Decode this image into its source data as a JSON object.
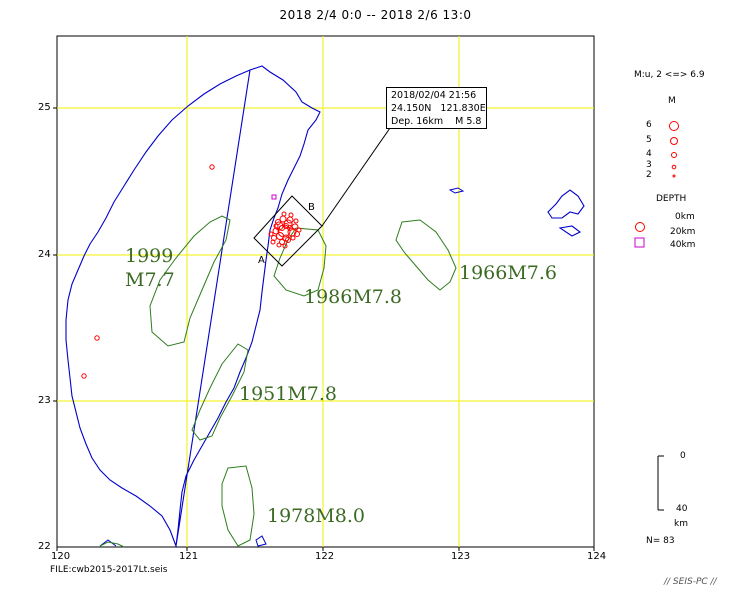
{
  "title": "2018 2/4 0:0 -- 2018 2/6 13:0",
  "map": {
    "lon_ticks": [
      "120",
      "121",
      "122",
      "123",
      "124"
    ],
    "lat_ticks": [
      "25",
      "24",
      "23",
      "22"
    ],
    "grid": true
  },
  "event_info": {
    "line1": "2018/02/04 21:56",
    "line2": "24.150N   121.830E",
    "line3": "Dep. 16km    M 5.8"
  },
  "section_labels": {
    "a": "A",
    "b": "B"
  },
  "historic_quakes": [
    {
      "label_line1": "1999",
      "label_line2": "M7.7"
    },
    {
      "label": "1986M7.8"
    },
    {
      "label": "1966M7.6"
    },
    {
      "label": "1951M7.8"
    },
    {
      "label": "1978M8.0"
    }
  ],
  "legend": {
    "magnitude_range": "M:u, 2 <=> 6.9",
    "magnitude_title": "M",
    "magnitudes": [
      "6",
      "5",
      "4",
      "3",
      "2"
    ],
    "depth_title": "DEPTH",
    "depths": [
      "0km",
      "20km",
      "40km"
    ],
    "depth_colors": [
      "#ff0000",
      "#ff0000",
      "#cc00cc"
    ],
    "scale_top": "0",
    "scale_bottom": "40",
    "scale_unit": "km",
    "count": "N= 83"
  },
  "footer": {
    "file": "FILE:cwb2015-2017Lt.seis",
    "brand": "// SEIS-PC //"
  },
  "colors": {
    "coast": "#0000cc",
    "grid": "#ffff00",
    "fault_zone": "#2e7d1e",
    "event": "#ff0000",
    "deep_event": "#cc00cc"
  }
}
